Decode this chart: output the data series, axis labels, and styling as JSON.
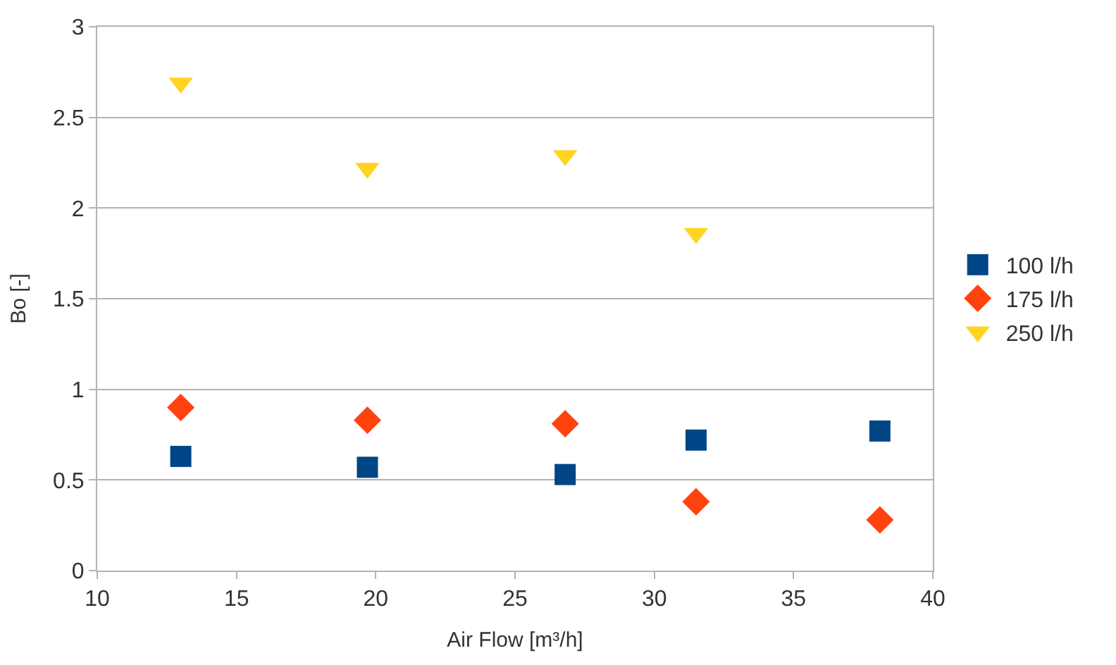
{
  "chart_data": {
    "type": "scatter",
    "xlabel": "Air Flow [m³/h]",
    "ylabel": "Bo [-]",
    "x": [
      13.0,
      19.7,
      26.8,
      31.5,
      38.1
    ],
    "series": [
      {
        "name": "100 l/h",
        "color": "#004586",
        "marker": "square",
        "values": [
          0.63,
          0.57,
          0.53,
          0.72,
          0.77
        ]
      },
      {
        "name": "175 l/h",
        "color": "#ff420e",
        "marker": "diamond",
        "values": [
          0.9,
          0.83,
          0.81,
          0.38,
          0.28
        ]
      },
      {
        "name": "250 l/h",
        "color": "#ffd320",
        "marker": "triangle",
        "values": [
          2.69,
          2.22,
          2.29,
          1.86,
          null
        ]
      }
    ],
    "xlim": [
      10,
      40
    ],
    "xticks": [
      10,
      15,
      20,
      25,
      30,
      35,
      40
    ],
    "ylim": [
      0,
      3
    ],
    "yticks": [
      0,
      0.5,
      1,
      1.5,
      2,
      2.5,
      3
    ],
    "grid": "y",
    "legend": "right"
  }
}
